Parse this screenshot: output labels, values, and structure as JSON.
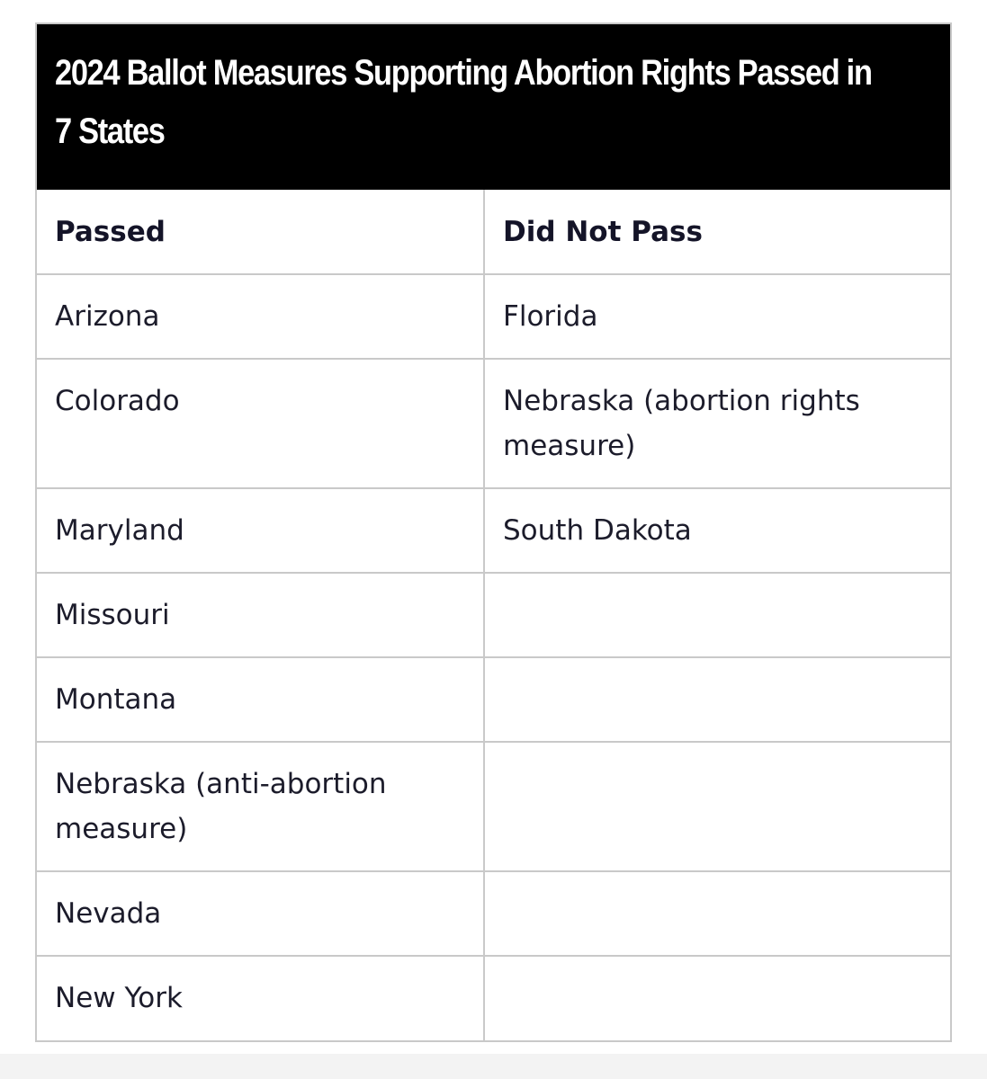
{
  "title": "2024 Ballot Measures Supporting Abortion Rights Passed in 7 States",
  "table": {
    "headers": [
      "Passed",
      "Did Not Pass"
    ],
    "rows": [
      [
        "Arizona",
        "Florida"
      ],
      [
        "Colorado",
        "Nebraska (abortion rights measure)"
      ],
      [
        "Maryland",
        "South Dakota"
      ],
      [
        "Missouri",
        ""
      ],
      [
        "Montana",
        ""
      ],
      [
        "Nebraska (anti-abortion measure)",
        ""
      ],
      [
        "Nevada",
        ""
      ],
      [
        "New York",
        ""
      ]
    ]
  },
  "colors": {
    "title_background": "#000000",
    "title_text": "#ffffff",
    "border": "#c9c9c9",
    "cell_text": "#1c1c2b"
  }
}
